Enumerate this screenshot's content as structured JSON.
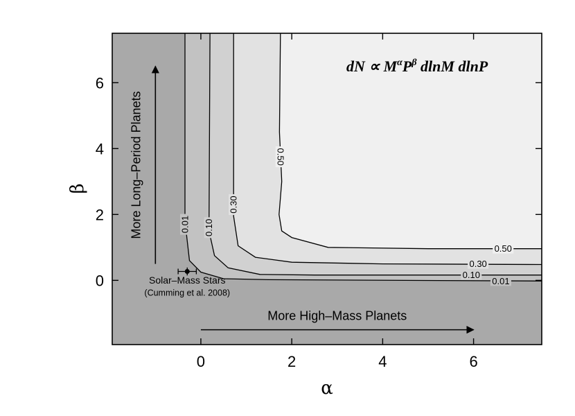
{
  "chart_data": {
    "type": "contour",
    "xlabel": "α",
    "ylabel": "β",
    "xlim": [
      -1.95,
      7.5
    ],
    "ylim": [
      -1.95,
      7.5
    ],
    "xticks": [
      0,
      2,
      4,
      6
    ],
    "yticks": [
      0,
      2,
      4,
      6
    ],
    "xtick_labels": [
      "0",
      "2",
      "4",
      "6"
    ],
    "ytick_labels": [
      "0",
      "2",
      "4",
      "6"
    ],
    "formula": {
      "prefix": "dN ∝ M",
      "sup1": "α",
      "mid": "P",
      "sup2": "β",
      "suffix": " dlnM dlnP"
    },
    "levels": [
      {
        "label": "0.01",
        "fill": "#c2c2c2",
        "points": [
          [
            -0.35,
            7.5
          ],
          [
            -0.35,
            1.8
          ],
          [
            -0.25,
            0.6
          ],
          [
            0.0,
            0.25
          ],
          [
            0.5,
            0.05
          ],
          [
            1.5,
            0.02
          ],
          [
            7.5,
            -0.02
          ]
        ]
      },
      {
        "label": "0.10",
        "fill": "#d1d1d1",
        "points": [
          [
            0.2,
            7.5
          ],
          [
            0.18,
            1.5
          ],
          [
            0.3,
            0.75
          ],
          [
            0.6,
            0.38
          ],
          [
            1.3,
            0.18
          ],
          [
            2.5,
            0.16
          ],
          [
            7.5,
            0.16
          ]
        ]
      },
      {
        "label": "0.30",
        "fill": "#e2e2e2",
        "points": [
          [
            0.72,
            7.5
          ],
          [
            0.72,
            1.95
          ],
          [
            0.82,
            1.05
          ],
          [
            1.2,
            0.7
          ],
          [
            2.0,
            0.55
          ],
          [
            4.0,
            0.5
          ],
          [
            7.5,
            0.48
          ]
        ]
      },
      {
        "label": "0.50",
        "fill": "#f0f0f0",
        "points": [
          [
            1.75,
            7.5
          ],
          [
            1.73,
            4.5
          ],
          [
            1.78,
            3.0
          ],
          [
            1.72,
            2.0
          ],
          [
            1.78,
            1.5
          ],
          [
            2.0,
            1.3
          ],
          [
            2.8,
            1.0
          ],
          [
            5.0,
            0.96
          ],
          [
            7.5,
            0.96
          ]
        ]
      }
    ],
    "contour_labels": [
      {
        "text": "0.01",
        "x": -0.35,
        "y": 1.7,
        "rotate": -90
      },
      {
        "text": "0.10",
        "x": 0.18,
        "y": 1.6,
        "rotate": -90
      },
      {
        "text": "0.30",
        "x": 0.72,
        "y": 2.3,
        "rotate": -90
      },
      {
        "text": "0.50",
        "x": 1.75,
        "y": 3.75,
        "rotate": 90
      },
      {
        "text": "0.50",
        "x": 6.65,
        "y": 0.96,
        "rotate": 0
      },
      {
        "text": "0.30",
        "x": 6.1,
        "y": 0.5,
        "rotate": 0
      },
      {
        "text": "0.10",
        "x": 5.95,
        "y": 0.17,
        "rotate": 0
      },
      {
        "text": "0.01",
        "x": 6.6,
        "y": -0.02,
        "rotate": 0
      }
    ],
    "marker": {
      "x": -0.3,
      "y": 0.27,
      "xerr": 0.2,
      "yerr": 0.12
    },
    "annotations": {
      "marker_label_1": "Solar–Mass Stars",
      "marker_label_2": "(Cumming et al. 2008)",
      "x_arrow_label": "More High–Mass Planets",
      "y_arrow_label": "More Long–Period Planets"
    },
    "arrows": {
      "x": {
        "from": [
          0,
          -1.5
        ],
        "to": [
          6,
          -1.5
        ]
      },
      "y": {
        "from": [
          -1.0,
          0.5
        ],
        "to": [
          -1.0,
          6.5
        ]
      }
    },
    "background_fill": "#a9a9a9",
    "grid": false
  }
}
